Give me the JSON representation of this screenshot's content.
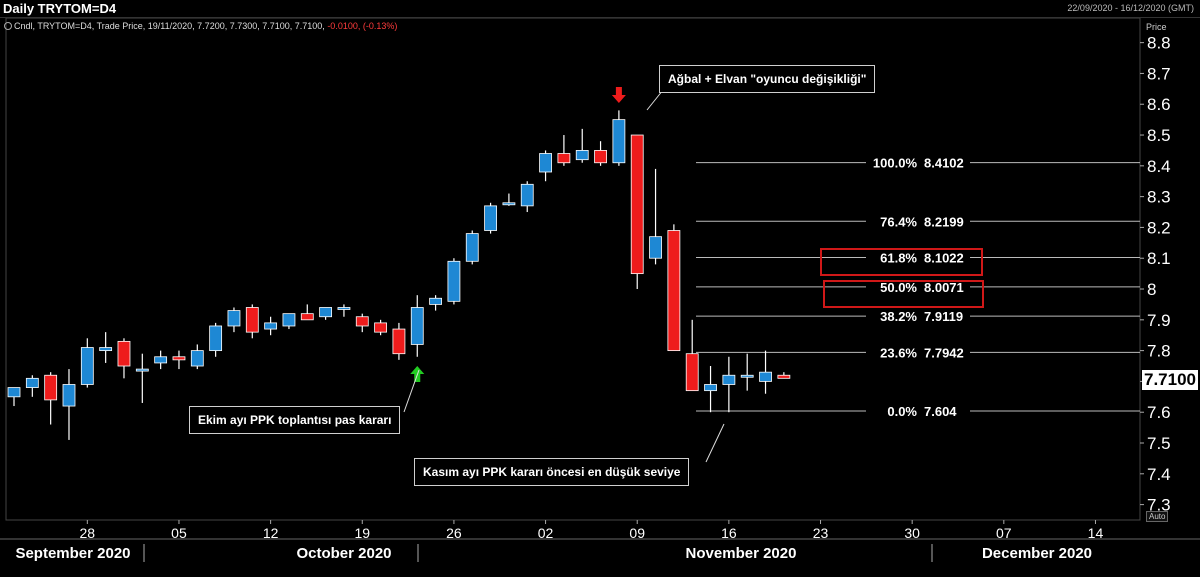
{
  "header": {
    "title": "Daily TRYTOM=D4",
    "date_range": "22/09/2020 - 16/12/2020 (GMT)",
    "subtitle_prefix": "Cndl, TRYTOM=D4, Trade Price, 19/11/2020, 7.7200, 7.7300, 7.7100, 7.7100,",
    "subtitle_change": "-0.0100, (-0.13%)"
  },
  "axis": {
    "price_label": "Price",
    "auto_label": "Auto",
    "last_price": "7.7100"
  },
  "annotations": {
    "top_event": "Ağbal + Elvan \"oyuncu değişikliği\"",
    "october_event": "Ekim ayı PPK toplantısı pas kararı",
    "november_event": "Kasım ayı PPK kararı öncesi en düşük seviye"
  },
  "colors": {
    "up": "#1e88d4",
    "down": "#ee1c1c",
    "up_arrow": "#22cc22",
    "down_arrow": "#ee1c1c",
    "highlight_box": "#d01818"
  },
  "chart_data": {
    "type": "candlestick",
    "title": "Daily TRYTOM=D4",
    "ylabel": "Price",
    "ylim": [
      7.25,
      8.88
    ],
    "y_ticks": [
      7.3,
      7.4,
      7.5,
      7.6,
      7.7,
      7.8,
      7.9,
      8,
      8.1,
      8.2,
      8.3,
      8.4,
      8.5,
      8.6,
      8.7,
      8.8
    ],
    "y_tick_labels": [
      "7.3",
      "7.4",
      "7.5",
      "7.6",
      "7.7",
      "7.8",
      "7.9",
      "8",
      "8.1",
      "8.2",
      "8.3",
      "8.4",
      "8.5",
      "8.6",
      "8.7",
      "8.8"
    ],
    "x_ticks": [
      "28",
      "05",
      "12",
      "19",
      "26",
      "02",
      "09",
      "16",
      "23",
      "30",
      "07",
      "14"
    ],
    "months": [
      "September 2020",
      "October 2020",
      "November 2020",
      "December 2020"
    ],
    "candles": [
      {
        "o": 7.65,
        "h": 7.68,
        "l": 7.62,
        "c": 7.68
      },
      {
        "o": 7.68,
        "h": 7.72,
        "l": 7.65,
        "c": 7.71
      },
      {
        "o": 7.72,
        "h": 7.73,
        "l": 7.56,
        "c": 7.64
      },
      {
        "o": 7.62,
        "h": 7.74,
        "l": 7.51,
        "c": 7.69
      },
      {
        "o": 7.69,
        "h": 7.84,
        "l": 7.68,
        "c": 7.81
      },
      {
        "o": 7.8,
        "h": 7.86,
        "l": 7.76,
        "c": 7.81
      },
      {
        "o": 7.83,
        "h": 7.84,
        "l": 7.71,
        "c": 7.75
      },
      {
        "o": 7.74,
        "h": 7.79,
        "l": 7.63,
        "c": 7.74
      },
      {
        "o": 7.76,
        "h": 7.8,
        "l": 7.74,
        "c": 7.78
      },
      {
        "o": 7.78,
        "h": 7.8,
        "l": 7.74,
        "c": 7.77
      },
      {
        "o": 7.75,
        "h": 7.82,
        "l": 7.74,
        "c": 7.8
      },
      {
        "o": 7.8,
        "h": 7.89,
        "l": 7.78,
        "c": 7.88
      },
      {
        "o": 7.88,
        "h": 7.94,
        "l": 7.86,
        "c": 7.93
      },
      {
        "o": 7.94,
        "h": 7.95,
        "l": 7.84,
        "c": 7.86
      },
      {
        "o": 7.87,
        "h": 7.91,
        "l": 7.85,
        "c": 7.89
      },
      {
        "o": 7.88,
        "h": 7.92,
        "l": 7.87,
        "c": 7.92
      },
      {
        "o": 7.92,
        "h": 7.95,
        "l": 7.9,
        "c": 7.9
      },
      {
        "o": 7.91,
        "h": 7.94,
        "l": 7.9,
        "c": 7.94
      },
      {
        "o": 7.94,
        "h": 7.95,
        "l": 7.91,
        "c": 7.94
      },
      {
        "o": 7.91,
        "h": 7.92,
        "l": 7.86,
        "c": 7.88
      },
      {
        "o": 7.89,
        "h": 7.9,
        "l": 7.85,
        "c": 7.86
      },
      {
        "o": 7.87,
        "h": 7.89,
        "l": 7.77,
        "c": 7.79
      },
      {
        "o": 7.82,
        "h": 7.98,
        "l": 7.78,
        "c": 7.94
      },
      {
        "o": 7.95,
        "h": 7.98,
        "l": 7.93,
        "c": 7.97
      },
      {
        "o": 7.96,
        "h": 8.1,
        "l": 7.95,
        "c": 8.09
      },
      {
        "o": 8.09,
        "h": 8.19,
        "l": 8.08,
        "c": 8.18
      },
      {
        "o": 8.19,
        "h": 8.28,
        "l": 8.18,
        "c": 8.27
      },
      {
        "o": 8.28,
        "h": 8.31,
        "l": 8.27,
        "c": 8.28
      },
      {
        "o": 8.27,
        "h": 8.35,
        "l": 8.25,
        "c": 8.34
      },
      {
        "o": 8.38,
        "h": 8.45,
        "l": 8.35,
        "c": 8.44
      },
      {
        "o": 8.44,
        "h": 8.5,
        "l": 8.4,
        "c": 8.41
      },
      {
        "o": 8.42,
        "h": 8.52,
        "l": 8.41,
        "c": 8.45
      },
      {
        "o": 8.45,
        "h": 8.48,
        "l": 8.4,
        "c": 8.41
      },
      {
        "o": 8.41,
        "h": 8.58,
        "l": 8.4,
        "c": 8.55
      },
      {
        "o": 8.5,
        "h": 8.5,
        "l": 8.0,
        "c": 8.05
      },
      {
        "o": 8.1,
        "h": 8.39,
        "l": 8.08,
        "c": 8.17
      },
      {
        "o": 8.19,
        "h": 8.21,
        "l": 7.8,
        "c": 7.8
      },
      {
        "o": 7.79,
        "h": 7.9,
        "l": 7.67,
        "c": 7.67
      },
      {
        "o": 7.67,
        "h": 7.75,
        "l": 7.6,
        "c": 7.69
      },
      {
        "o": 7.69,
        "h": 7.78,
        "l": 7.6,
        "c": 7.72
      },
      {
        "o": 7.72,
        "h": 7.79,
        "l": 7.67,
        "c": 7.72
      },
      {
        "o": 7.7,
        "h": 7.8,
        "l": 7.66,
        "c": 7.73
      },
      {
        "o": 7.72,
        "h": 7.73,
        "l": 7.71,
        "c": 7.71
      }
    ],
    "fibonacci": [
      {
        "label": "100.0%",
        "value": 8.4102,
        "text": "8.4102"
      },
      {
        "label": "76.4%",
        "value": 8.2199,
        "text": "8.2199"
      },
      {
        "label": "61.8%",
        "value": 8.1022,
        "text": "8.1022",
        "highlighted": true
      },
      {
        "label": "50.0%",
        "value": 8.0071,
        "text": "8.0071",
        "highlighted": true
      },
      {
        "label": "38.2%",
        "value": 7.9119,
        "text": "7.9119"
      },
      {
        "label": "23.6%",
        "value": 7.7942,
        "text": "7.7942"
      },
      {
        "label": "0.0%",
        "value": 7.604,
        "text": "7.604"
      }
    ]
  }
}
